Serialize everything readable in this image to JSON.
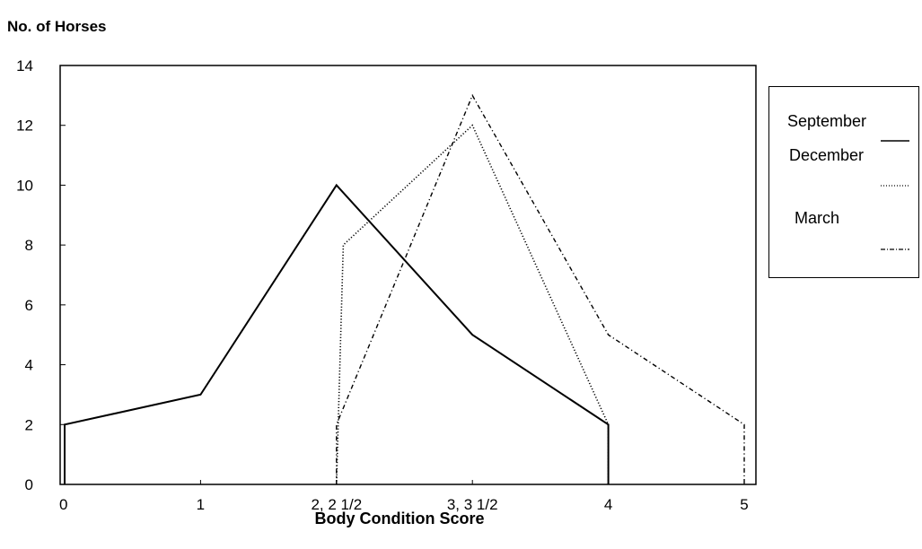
{
  "chart_data": {
    "type": "line",
    "ylabel": "No. of Horses",
    "xlabel": "Body Condition Score",
    "ylim": [
      0,
      14
    ],
    "xlim": [
      0,
      5
    ],
    "y_ticks": [
      0,
      2,
      4,
      6,
      8,
      10,
      12,
      14
    ],
    "x_ticks": [
      {
        "value": 0,
        "label": "0"
      },
      {
        "value": 1,
        "label": "1"
      },
      {
        "value": 2,
        "label": "2,  2 1/2"
      },
      {
        "value": 3,
        "label": "3,  3 1/2"
      },
      {
        "value": 4,
        "label": "4"
      },
      {
        "value": 5,
        "label": "5"
      }
    ],
    "grid": false,
    "legend_position": "right",
    "series": [
      {
        "name": "September",
        "style": "solid",
        "points": [
          [
            0,
            0
          ],
          [
            0,
            2
          ],
          [
            1,
            3
          ],
          [
            2,
            10
          ],
          [
            3,
            5
          ],
          [
            4,
            2
          ],
          [
            4,
            0
          ]
        ]
      },
      {
        "name": "December",
        "style": "dotted",
        "points": [
          [
            2,
            0
          ],
          [
            2.05,
            8
          ],
          [
            3,
            12
          ],
          [
            4,
            2
          ],
          [
            4,
            0
          ]
        ]
      },
      {
        "name": "March",
        "style": "dashdot",
        "points": [
          [
            2,
            0
          ],
          [
            2,
            2
          ],
          [
            3,
            13
          ],
          [
            4,
            5
          ],
          [
            5,
            2
          ],
          [
            5,
            0
          ]
        ]
      }
    ],
    "colors": {
      "axis": "#000000",
      "line": "#000000"
    }
  }
}
